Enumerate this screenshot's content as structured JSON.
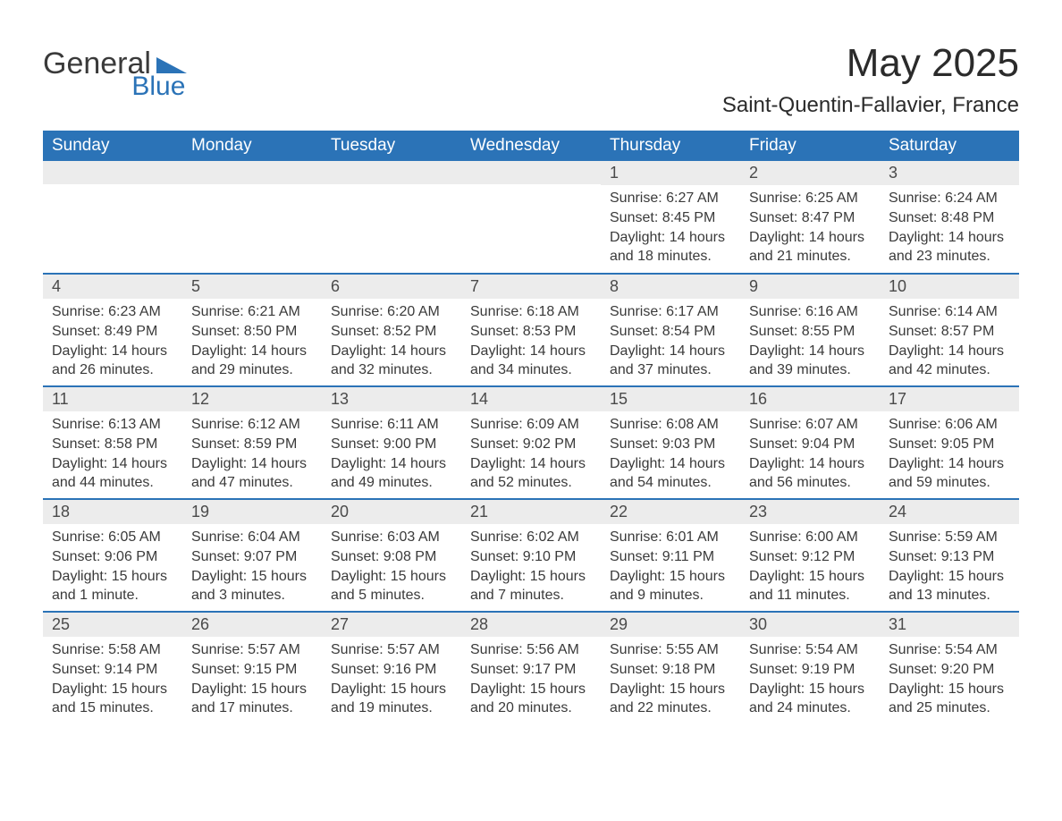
{
  "logo": {
    "general_text": "General",
    "blue_text": "Blue",
    "shape_color": "#2b73b7",
    "general_color": "#3a3a3a",
    "blue_color": "#2b73b7"
  },
  "title": "May 2025",
  "subtitle": "Saint-Quentin-Fallavier, France",
  "colors": {
    "header_bg": "#2b73b7",
    "header_text": "#ffffff",
    "daynum_bg": "#ececec",
    "daynum_text": "#4a4a4a",
    "body_text": "#3a3a3a",
    "row_border": "#2b73b7",
    "page_bg": "#ffffff"
  },
  "typography": {
    "title_fontsize": 44,
    "subtitle_fontsize": 24,
    "dayheader_fontsize": 19,
    "daynum_fontsize": 18,
    "body_fontsize": 16
  },
  "weekdays": [
    "Sunday",
    "Monday",
    "Tuesday",
    "Wednesday",
    "Thursday",
    "Friday",
    "Saturday"
  ],
  "weeks": [
    [
      null,
      null,
      null,
      null,
      {
        "day": "1",
        "sunrise": "6:27 AM",
        "sunset": "8:45 PM",
        "daylight": "14 hours and 18 minutes."
      },
      {
        "day": "2",
        "sunrise": "6:25 AM",
        "sunset": "8:47 PM",
        "daylight": "14 hours and 21 minutes."
      },
      {
        "day": "3",
        "sunrise": "6:24 AM",
        "sunset": "8:48 PM",
        "daylight": "14 hours and 23 minutes."
      }
    ],
    [
      {
        "day": "4",
        "sunrise": "6:23 AM",
        "sunset": "8:49 PM",
        "daylight": "14 hours and 26 minutes."
      },
      {
        "day": "5",
        "sunrise": "6:21 AM",
        "sunset": "8:50 PM",
        "daylight": "14 hours and 29 minutes."
      },
      {
        "day": "6",
        "sunrise": "6:20 AM",
        "sunset": "8:52 PM",
        "daylight": "14 hours and 32 minutes."
      },
      {
        "day": "7",
        "sunrise": "6:18 AM",
        "sunset": "8:53 PM",
        "daylight": "14 hours and 34 minutes."
      },
      {
        "day": "8",
        "sunrise": "6:17 AM",
        "sunset": "8:54 PM",
        "daylight": "14 hours and 37 minutes."
      },
      {
        "day": "9",
        "sunrise": "6:16 AM",
        "sunset": "8:55 PM",
        "daylight": "14 hours and 39 minutes."
      },
      {
        "day": "10",
        "sunrise": "6:14 AM",
        "sunset": "8:57 PM",
        "daylight": "14 hours and 42 minutes."
      }
    ],
    [
      {
        "day": "11",
        "sunrise": "6:13 AM",
        "sunset": "8:58 PM",
        "daylight": "14 hours and 44 minutes."
      },
      {
        "day": "12",
        "sunrise": "6:12 AM",
        "sunset": "8:59 PM",
        "daylight": "14 hours and 47 minutes."
      },
      {
        "day": "13",
        "sunrise": "6:11 AM",
        "sunset": "9:00 PM",
        "daylight": "14 hours and 49 minutes."
      },
      {
        "day": "14",
        "sunrise": "6:09 AM",
        "sunset": "9:02 PM",
        "daylight": "14 hours and 52 minutes."
      },
      {
        "day": "15",
        "sunrise": "6:08 AM",
        "sunset": "9:03 PM",
        "daylight": "14 hours and 54 minutes."
      },
      {
        "day": "16",
        "sunrise": "6:07 AM",
        "sunset": "9:04 PM",
        "daylight": "14 hours and 56 minutes."
      },
      {
        "day": "17",
        "sunrise": "6:06 AM",
        "sunset": "9:05 PM",
        "daylight": "14 hours and 59 minutes."
      }
    ],
    [
      {
        "day": "18",
        "sunrise": "6:05 AM",
        "sunset": "9:06 PM",
        "daylight": "15 hours and 1 minute."
      },
      {
        "day": "19",
        "sunrise": "6:04 AM",
        "sunset": "9:07 PM",
        "daylight": "15 hours and 3 minutes."
      },
      {
        "day": "20",
        "sunrise": "6:03 AM",
        "sunset": "9:08 PM",
        "daylight": "15 hours and 5 minutes."
      },
      {
        "day": "21",
        "sunrise": "6:02 AM",
        "sunset": "9:10 PM",
        "daylight": "15 hours and 7 minutes."
      },
      {
        "day": "22",
        "sunrise": "6:01 AM",
        "sunset": "9:11 PM",
        "daylight": "15 hours and 9 minutes."
      },
      {
        "day": "23",
        "sunrise": "6:00 AM",
        "sunset": "9:12 PM",
        "daylight": "15 hours and 11 minutes."
      },
      {
        "day": "24",
        "sunrise": "5:59 AM",
        "sunset": "9:13 PM",
        "daylight": "15 hours and 13 minutes."
      }
    ],
    [
      {
        "day": "25",
        "sunrise": "5:58 AM",
        "sunset": "9:14 PM",
        "daylight": "15 hours and 15 minutes."
      },
      {
        "day": "26",
        "sunrise": "5:57 AM",
        "sunset": "9:15 PM",
        "daylight": "15 hours and 17 minutes."
      },
      {
        "day": "27",
        "sunrise": "5:57 AM",
        "sunset": "9:16 PM",
        "daylight": "15 hours and 19 minutes."
      },
      {
        "day": "28",
        "sunrise": "5:56 AM",
        "sunset": "9:17 PM",
        "daylight": "15 hours and 20 minutes."
      },
      {
        "day": "29",
        "sunrise": "5:55 AM",
        "sunset": "9:18 PM",
        "daylight": "15 hours and 22 minutes."
      },
      {
        "day": "30",
        "sunrise": "5:54 AM",
        "sunset": "9:19 PM",
        "daylight": "15 hours and 24 minutes."
      },
      {
        "day": "31",
        "sunrise": "5:54 AM",
        "sunset": "9:20 PM",
        "daylight": "15 hours and 25 minutes."
      }
    ]
  ],
  "labels": {
    "sunrise_prefix": "Sunrise: ",
    "sunset_prefix": "Sunset: ",
    "daylight_prefix": "Daylight: "
  }
}
